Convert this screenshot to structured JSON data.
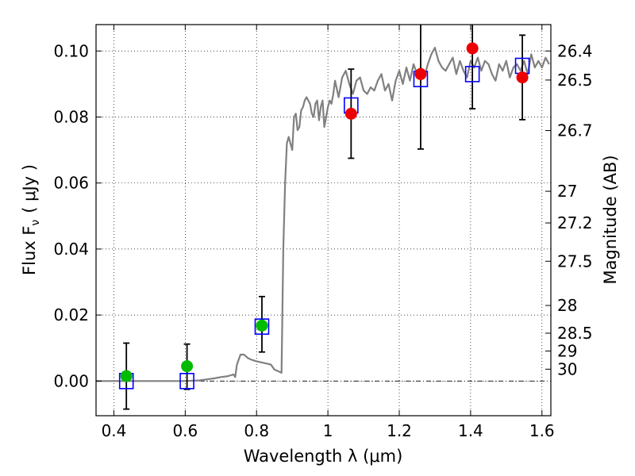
{
  "chart_data": {
    "type": "scatter",
    "title": "",
    "xlabel": "Wavelength  λ (μm)",
    "ylabel": "Flux  F",
    "ylabel_sub": "ν",
    "ylabel_unit": "( μJy )",
    "y2label": "Magnitude (AB)",
    "xlim": [
      0.35,
      1.625
    ],
    "ylim": [
      -0.0105,
      0.108
    ],
    "grid": true,
    "legend": "none",
    "x_ticks": [
      0.4,
      0.6,
      0.8,
      1.0,
      1.2,
      1.4,
      1.6
    ],
    "x_tick_labels": [
      "0.4",
      "0.6",
      "0.8",
      "1",
      "1.2",
      "1.4",
      "1.6"
    ],
    "y_ticks": [
      0.0,
      0.02,
      0.04,
      0.06,
      0.08,
      0.1
    ],
    "y_tick_labels": [
      "0.00",
      "0.02",
      "0.04",
      "0.06",
      "0.08",
      "0.10"
    ],
    "magnitude_ticks": [
      {
        "label": "26.4",
        "flux": 0.1
      },
      {
        "label": "26.5",
        "flux": 0.0912
      },
      {
        "label": "26.7",
        "flux": 0.0759
      },
      {
        "label": "27",
        "flux": 0.0575
      },
      {
        "label": "27.2",
        "flux": 0.0479
      },
      {
        "label": "27.5",
        "flux": 0.0363
      },
      {
        "label": "28",
        "flux": 0.0229
      },
      {
        "label": "28.5",
        "flux": 0.0145
      },
      {
        "label": "29",
        "flux": 0.0091
      },
      {
        "label": "30",
        "flux": 0.0036
      }
    ],
    "series": [
      {
        "kind": "line",
        "color": "#808080",
        "x": [
          0.35,
          0.6,
          0.64,
          0.66,
          0.68,
          0.7,
          0.72,
          0.735,
          0.74,
          0.745,
          0.755,
          0.765,
          0.775,
          0.785,
          0.8,
          0.82,
          0.84,
          0.85,
          0.86,
          0.87,
          0.875,
          0.88,
          0.885,
          0.89,
          0.895,
          0.9,
          0.905,
          0.91,
          0.915,
          0.92,
          0.925,
          0.93,
          0.935,
          0.94,
          0.945,
          0.95,
          0.955,
          0.96,
          0.965,
          0.97,
          0.975,
          0.98,
          0.985,
          0.99,
          0.995,
          1.0,
          1.005,
          1.01,
          1.015,
          1.02,
          1.03,
          1.04,
          1.05,
          1.06,
          1.07,
          1.08,
          1.09,
          1.1,
          1.11,
          1.12,
          1.13,
          1.14,
          1.15,
          1.16,
          1.17,
          1.18,
          1.19,
          1.2,
          1.21,
          1.22,
          1.23,
          1.24,
          1.25,
          1.26,
          1.27,
          1.28,
          1.29,
          1.3,
          1.31,
          1.32,
          1.33,
          1.34,
          1.35,
          1.36,
          1.37,
          1.38,
          1.39,
          1.4,
          1.41,
          1.42,
          1.43,
          1.44,
          1.45,
          1.46,
          1.47,
          1.48,
          1.49,
          1.5,
          1.51,
          1.52,
          1.53,
          1.54,
          1.55,
          1.56,
          1.57,
          1.58,
          1.59,
          1.6,
          1.61,
          1.62
        ],
        "y": [
          0.0,
          0.0,
          0.0002,
          0.0005,
          0.0008,
          0.0012,
          0.0015,
          0.002,
          0.0012,
          0.005,
          0.008,
          0.008,
          0.007,
          0.0065,
          0.006,
          0.0055,
          0.005,
          0.0035,
          0.003,
          0.0025,
          0.04,
          0.06,
          0.072,
          0.074,
          0.072,
          0.07,
          0.08,
          0.081,
          0.076,
          0.077,
          0.082,
          0.083,
          0.085,
          0.086,
          0.085,
          0.084,
          0.081,
          0.08,
          0.084,
          0.085,
          0.079,
          0.083,
          0.085,
          0.077,
          0.08,
          0.083,
          0.085,
          0.084,
          0.087,
          0.091,
          0.086,
          0.092,
          0.094,
          0.09,
          0.087,
          0.091,
          0.092,
          0.088,
          0.087,
          0.089,
          0.088,
          0.091,
          0.093,
          0.088,
          0.09,
          0.085,
          0.091,
          0.094,
          0.09,
          0.095,
          0.091,
          0.096,
          0.093,
          0.095,
          0.092,
          0.096,
          0.099,
          0.101,
          0.097,
          0.095,
          0.094,
          0.096,
          0.098,
          0.093,
          0.097,
          0.094,
          0.092,
          0.097,
          0.095,
          0.098,
          0.094,
          0.097,
          0.096,
          0.093,
          0.091,
          0.096,
          0.094,
          0.097,
          0.092,
          0.095,
          0.096,
          0.094,
          0.097,
          0.093,
          0.099,
          0.095,
          0.097,
          0.095,
          0.098,
          0.096
        ]
      },
      {
        "kind": "open-squares",
        "color": "#0000ff",
        "x": [
          0.435,
          0.605,
          0.815,
          1.065,
          1.26,
          1.405,
          1.545
        ],
        "y": [
          0.0,
          0.0,
          0.0165,
          0.0835,
          0.0915,
          0.093,
          0.0955
        ]
      },
      {
        "kind": "filled-circles",
        "color": "#00bb00",
        "x": [
          0.435,
          0.605,
          0.815
        ],
        "y": [
          0.0015,
          0.0045,
          0.0168
        ],
        "yerr_low": [
          -0.0085,
          -0.0025,
          0.0088
        ],
        "yerr_high": [
          0.0115,
          0.0112,
          0.0256
        ]
      },
      {
        "kind": "filled-circles",
        "color": "#ee0000",
        "x": [
          1.065,
          1.26,
          1.405,
          1.545
        ],
        "y": [
          0.081,
          0.093,
          0.1008,
          0.092
        ],
        "yerr_low": [
          0.0675,
          0.0703,
          0.0825,
          0.0792
        ],
        "yerr_high": [
          0.0945,
          0.1085,
          0.1085,
          0.1048
        ]
      }
    ]
  }
}
